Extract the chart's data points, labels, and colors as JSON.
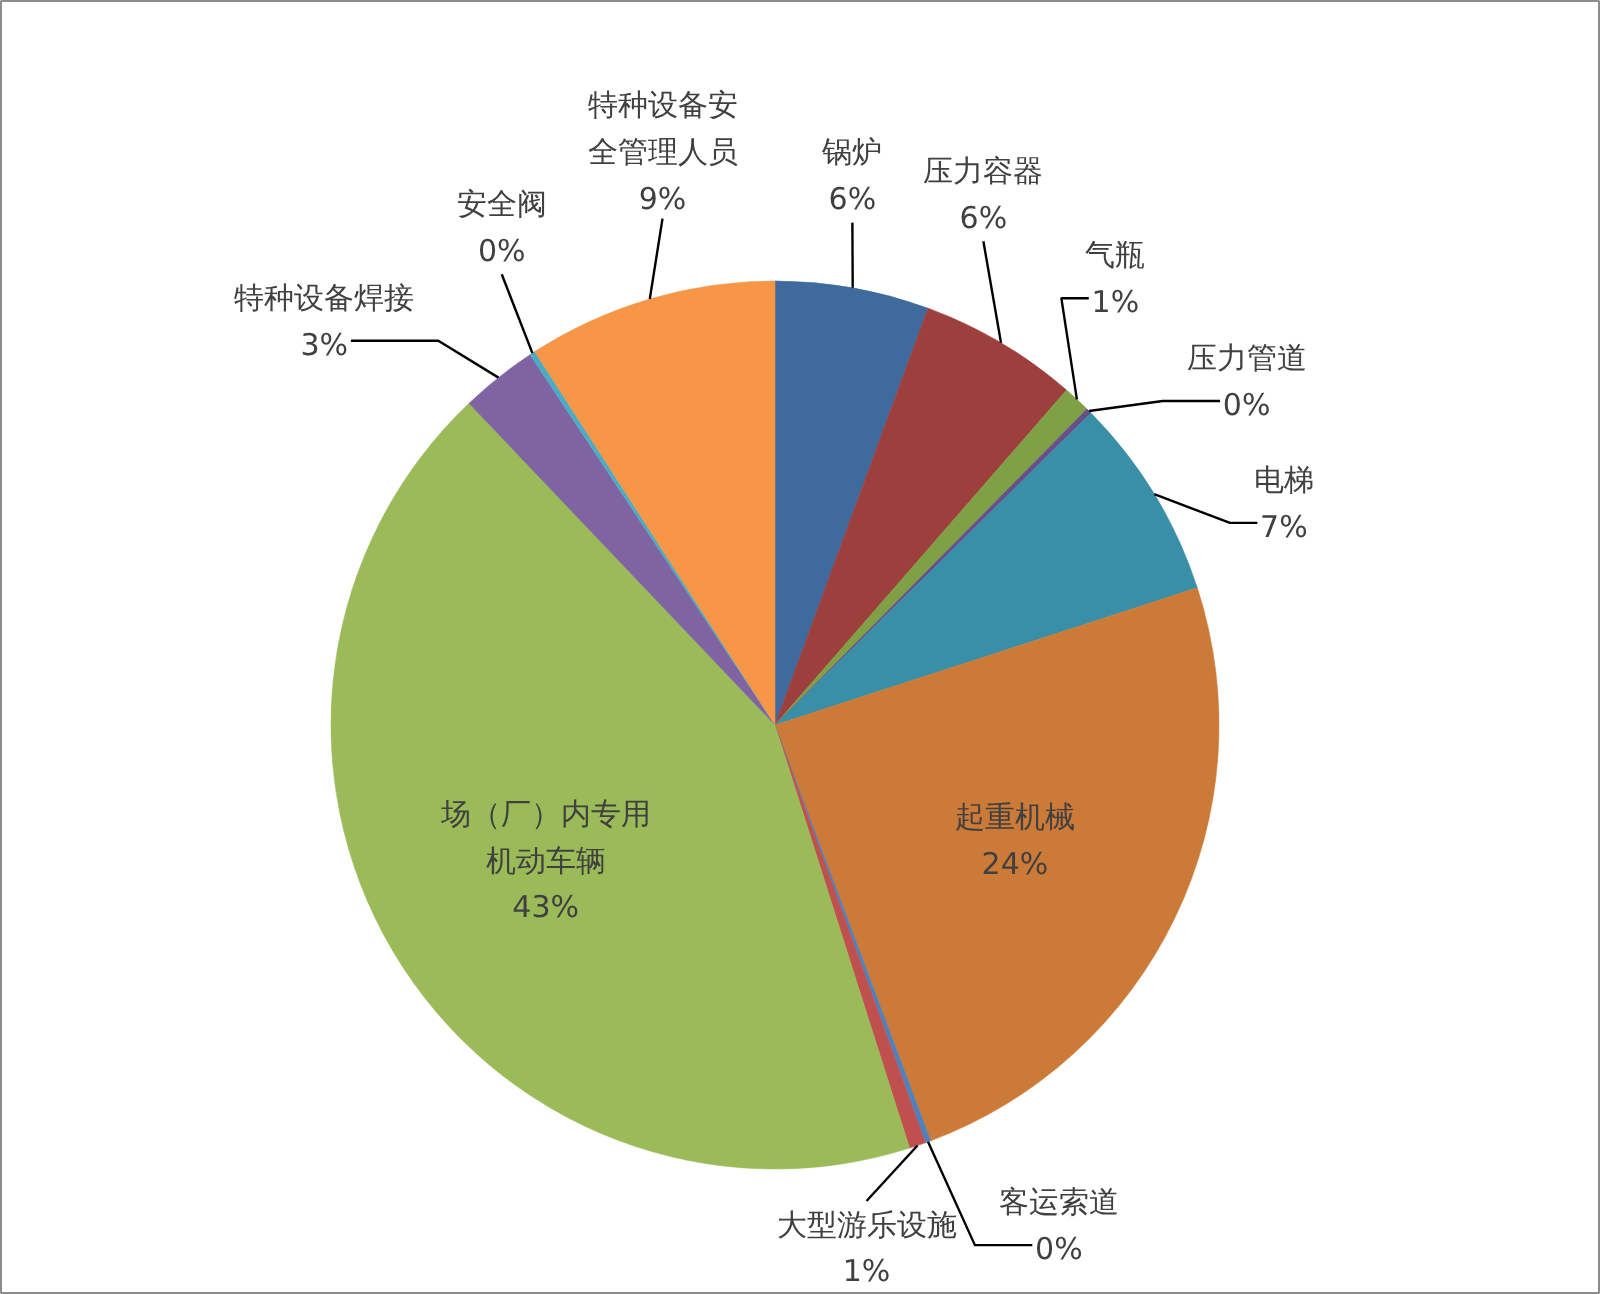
{
  "chart_data": {
    "type": "pie",
    "categories": [
      "锅炉",
      "压力容器",
      "气瓶",
      "压力管道",
      "电梯",
      "起重机械",
      "客运索道",
      "大型游乐设施",
      "场（厂）内专用机动车辆",
      "特种设备焊接",
      "安全阀",
      "特种设备安全管理人员"
    ],
    "values": [
      5.6,
      5.8,
      1.0,
      0.2,
      7.4,
      24.3,
      0.2,
      0.6,
      42.8,
      2.8,
      0.2,
      9.1
    ],
    "value_labels": [
      "6%",
      "6%",
      "1%",
      "0%",
      "7%",
      "24%",
      "0%",
      "1%",
      "43%",
      "3%",
      "0%",
      "9%"
    ],
    "colors": [
      "#3e6a9e",
      "#9d403d",
      "#80a046",
      "#67508a",
      "#3a8fa8",
      "#cc7a38",
      "#4f81bd",
      "#c0504d",
      "#9bbb59",
      "#8064a2",
      "#4bacc6",
      "#f79646"
    ]
  }
}
